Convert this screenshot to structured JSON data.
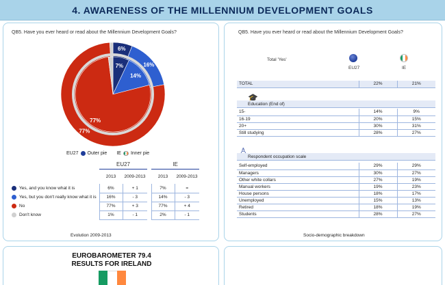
{
  "banner": {
    "title": "4. AWARENESS OF THE MILLENNIUM DEVELOPMENT GOALS"
  },
  "colors": {
    "dark_blue": "#1a2f7a",
    "blue": "#2e5fd0",
    "red": "#cc2a12",
    "grey_ring": "#d0d0d0",
    "flag_green": "#169b62",
    "flag_orange": "#ff883e"
  },
  "left_panel": {
    "question": "QB5. Have you ever heard or read about the Millennium Development Goals?",
    "legend": {
      "eu27_label": "EU27",
      "eu27_pie": "Outer pie",
      "ie_label": "IE",
      "ie_pie": "Inner pie"
    },
    "table": {
      "group_eu": "EU27",
      "group_ie": "IE",
      "col_year": "2013",
      "col_diff": "2009-2013",
      "rows": [
        {
          "label": "Yes, and you know what it is",
          "eu_2013": "6%",
          "eu_diff": "+ 1",
          "ie_2013": "7%",
          "ie_diff": "="
        },
        {
          "label": "Yes, but you don't really know what it is",
          "eu_2013": "16%",
          "eu_diff": "- 3",
          "ie_2013": "14%",
          "ie_diff": "- 3"
        },
        {
          "label": "No",
          "eu_2013": "77%",
          "eu_diff": "+ 3",
          "ie_2013": "77%",
          "ie_diff": "+ 4"
        },
        {
          "label": "Don't know",
          "eu_2013": "1%",
          "eu_diff": "- 1",
          "ie_2013": "2%",
          "ie_diff": "- 1"
        }
      ]
    },
    "footer": "Evolution 2009-2013"
  },
  "chart_data": {
    "type": "pie",
    "categories": [
      "Yes, and you know what it is",
      "Yes, but you don't really know what it is",
      "No",
      "Don't know"
    ],
    "series": [
      {
        "name": "EU27",
        "values": [
          6,
          16,
          77,
          1
        ]
      },
      {
        "name": "IE",
        "values": [
          7,
          14,
          77,
          2
        ]
      }
    ],
    "slice_labels": {
      "outer": [
        "6%",
        "16%",
        "77%"
      ],
      "inner": [
        "7%",
        "14%",
        "77%"
      ]
    }
  },
  "right_panel": {
    "question": "QB5. Have you ever heard or read about the Millennium Development Goals?",
    "header_label": "Total 'Yes'",
    "col1": "EU27",
    "col2": "IE",
    "total": {
      "label": "TOTAL",
      "eu": "22%",
      "ie": "21%"
    },
    "education": {
      "title": "Education (End of)",
      "rows": [
        {
          "label": "15-",
          "eu": "14%",
          "ie": "9%"
        },
        {
          "label": "16-19",
          "eu": "20%",
          "ie": "15%"
        },
        {
          "label": "20+",
          "eu": "30%",
          "ie": "31%"
        },
        {
          "label": "Still studying",
          "eu": "28%",
          "ie": "27%"
        }
      ]
    },
    "occupation": {
      "title": "Respondent occupation scale",
      "rows": [
        {
          "label": "Self-employed",
          "eu": "29%",
          "ie": "29%"
        },
        {
          "label": "Managers",
          "eu": "30%",
          "ie": "27%"
        },
        {
          "label": "Other white collars",
          "eu": "27%",
          "ie": "19%"
        },
        {
          "label": "Manual workers",
          "eu": "19%",
          "ie": "23%"
        },
        {
          "label": "House persons",
          "eu": "18%",
          "ie": "17%"
        },
        {
          "label": "Unemployed",
          "eu": "15%",
          "ie": "13%"
        },
        {
          "label": "Retired",
          "eu": "18%",
          "ie": "19%"
        },
        {
          "label": "Students",
          "eu": "28%",
          "ie": "27%"
        }
      ]
    },
    "footer": "Socio-demographic breakdown"
  },
  "bottom_panel": {
    "title_line1": "EUROBAROMETER 79.4",
    "title_line2": "RESULTS FOR IRELAND"
  }
}
